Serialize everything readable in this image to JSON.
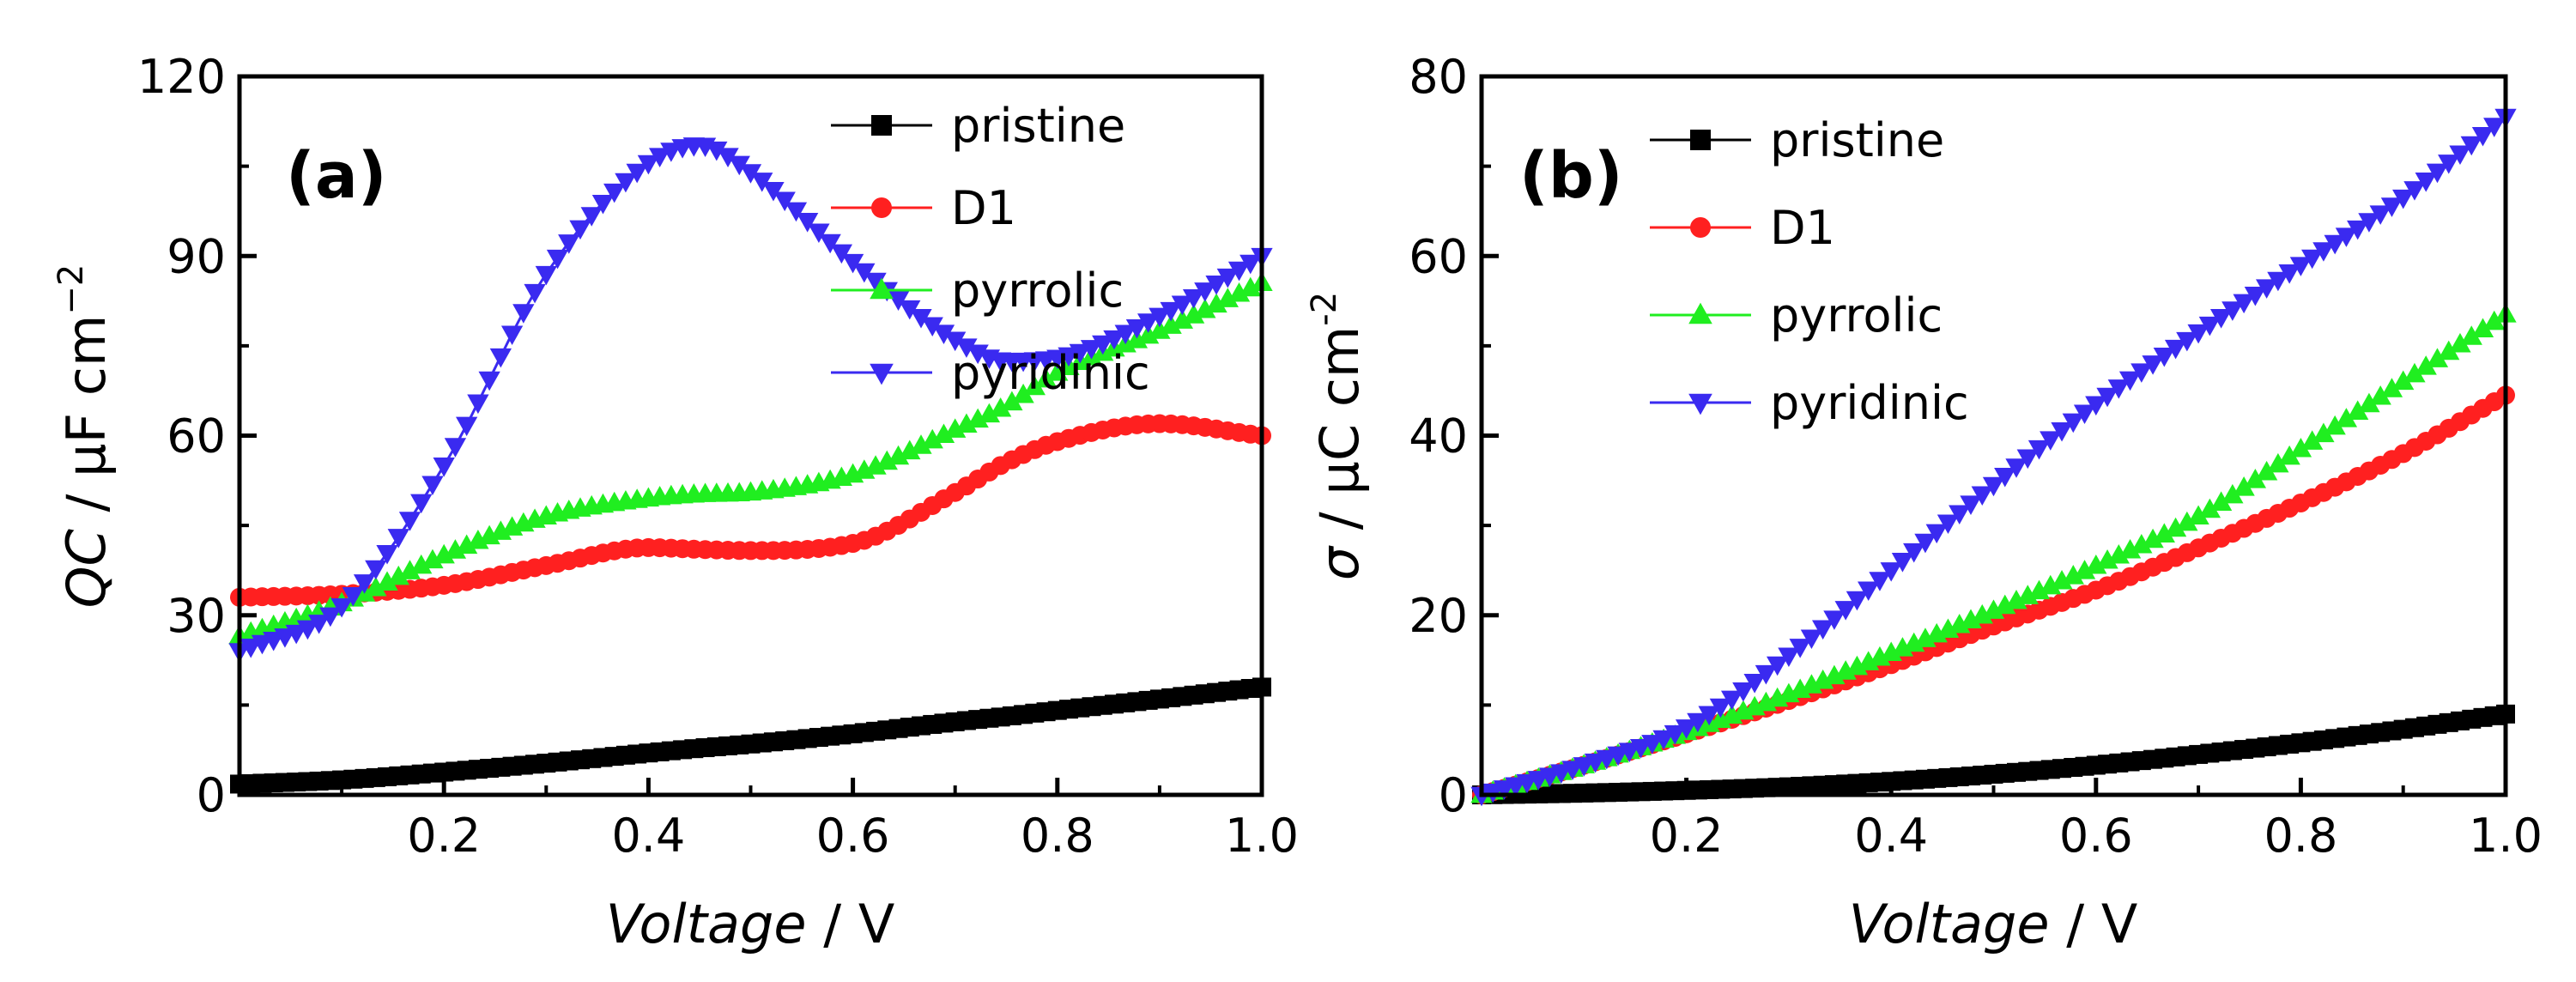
{
  "chart_data": [
    {
      "type": "line",
      "panel_label": "(a)",
      "xlabel_italic": "Voltage",
      "xlabel_unit": " / V",
      "ylabel_italic": "QC",
      "ylabel_unit": " / μF cm",
      "ylabel_exp": "−2",
      "xlim": [
        0.0,
        1.0
      ],
      "ylim": [
        0,
        120
      ],
      "xticks": [
        0.2,
        0.4,
        0.6,
        0.8,
        1.0
      ],
      "xtick_labels": [
        "0.2",
        "0.4",
        "0.6",
        "0.8",
        "1.0"
      ],
      "yticks": [
        0,
        30,
        60,
        90,
        120
      ],
      "ytick_labels": [
        "0",
        "30",
        "60",
        "90",
        "120"
      ],
      "legend_position": "top-right",
      "x": [
        0.0,
        0.1,
        0.2,
        0.3,
        0.4,
        0.45,
        0.5,
        0.6,
        0.7,
        0.75,
        0.8,
        0.9,
        1.0
      ],
      "series": [
        {
          "name": "pristine",
          "color": "#000000",
          "marker": "square",
          "values": [
            1.8,
            2.5,
            3.8,
            5.3,
            7.0,
            7.8,
            8.5,
            10.2,
            12.2,
            13.1,
            14.1,
            16.0,
            18.0
          ]
        },
        {
          "name": "D1",
          "color": "#ff2020",
          "marker": "circle",
          "values": [
            33.0,
            33.5,
            35.0,
            38.3,
            41.3,
            41.0,
            40.8,
            42.0,
            50.5,
            55.5,
            59.0,
            62.0,
            60.0
          ]
        },
        {
          "name": "pyrrolic",
          "color": "#20ee20",
          "marker": "triangle-up",
          "values": [
            26.5,
            32.0,
            40.0,
            46.5,
            49.5,
            50.2,
            50.5,
            53.5,
            61.0,
            65.0,
            70.5,
            77.5,
            85.5
          ]
        },
        {
          "name": "pyridinic",
          "color": "#3a2af0",
          "marker": "triangle-down",
          "values": [
            24.0,
            31.5,
            55.0,
            87.0,
            105.5,
            108.5,
            104.0,
            89.0,
            76.0,
            72.5,
            73.0,
            80.0,
            90.0
          ]
        }
      ]
    },
    {
      "type": "line",
      "panel_label": "(b)",
      "xlabel_italic": "Voltage",
      "xlabel_unit": " / V",
      "ylabel_italic": "σ",
      "ylabel_unit": " / μC cm",
      "ylabel_exp": "-2",
      "xlim": [
        0.0,
        1.0
      ],
      "ylim": [
        0,
        80
      ],
      "xticks": [
        0.2,
        0.4,
        0.6,
        0.8,
        1.0
      ],
      "xtick_labels": [
        "0.2",
        "0.4",
        "0.6",
        "0.8",
        "1.0"
      ],
      "yticks": [
        0,
        20,
        40,
        60,
        80
      ],
      "ytick_labels": [
        "0",
        "20",
        "40",
        "60",
        "80"
      ],
      "legend_position": "top-left",
      "x": [
        0.0,
        0.1,
        0.2,
        0.3,
        0.4,
        0.5,
        0.6,
        0.7,
        0.8,
        0.9,
        1.0
      ],
      "series": [
        {
          "name": "pristine",
          "color": "#000000",
          "marker": "square",
          "values": [
            0.0,
            0.2,
            0.5,
            0.9,
            1.5,
            2.3,
            3.3,
            4.5,
            5.8,
            7.3,
            9.0
          ]
        },
        {
          "name": "D1",
          "color": "#ff2020",
          "marker": "circle",
          "values": [
            0.0,
            3.3,
            6.8,
            10.5,
            14.5,
            18.8,
            22.8,
            27.5,
            32.5,
            38.0,
            44.5
          ]
        },
        {
          "name": "pyrrolic",
          "color": "#20ee20",
          "marker": "triangle-up",
          "values": [
            0.0,
            3.3,
            7.0,
            11.2,
            15.8,
            20.5,
            25.5,
            31.0,
            38.5,
            46.0,
            53.5
          ]
        },
        {
          "name": "pyridinic",
          "color": "#3a2af0",
          "marker": "triangle-down",
          "values": [
            0.0,
            3.3,
            7.5,
            15.5,
            25.0,
            34.5,
            43.5,
            51.5,
            59.0,
            66.5,
            75.5
          ]
        }
      ]
    }
  ]
}
